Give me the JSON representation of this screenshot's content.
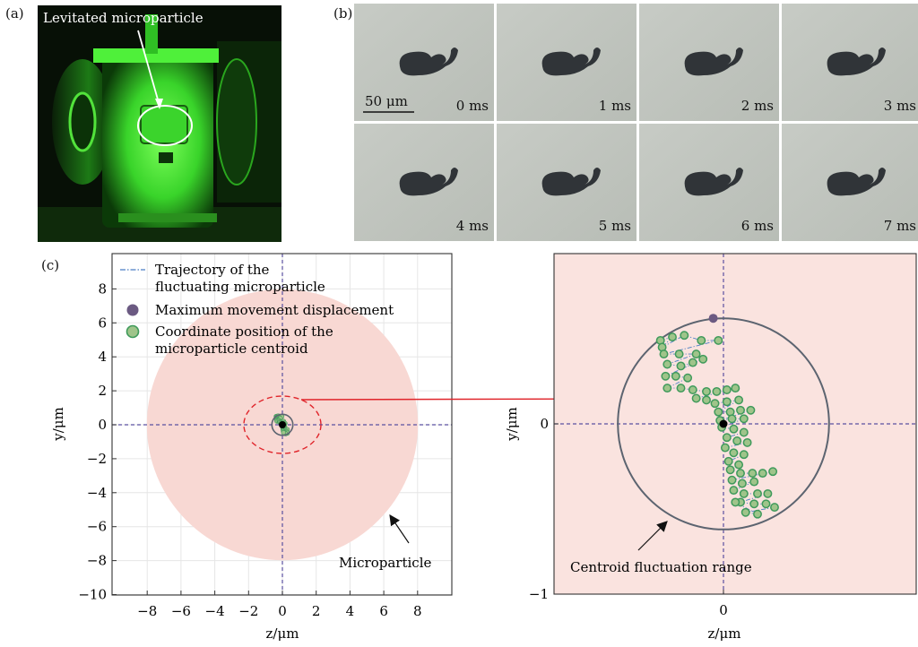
{
  "panel_a": {
    "label": "(a)",
    "annotation": "Levitated microparticle"
  },
  "panel_b": {
    "label": "(b)",
    "scale_bar": "50 μm",
    "frames": [
      "0 ms",
      "1 ms",
      "2 ms",
      "3 ms",
      "4 ms",
      "5 ms",
      "6 ms",
      "7 ms"
    ]
  },
  "panel_c": {
    "label": "(c)",
    "legend": {
      "trajectory_line1": "Trajectory of the",
      "trajectory_line2": "fluctuating microparticle",
      "max_disp": "Maximum movement displacement",
      "centroid_line1": "Coordinate position of the",
      "centroid_line2": "microparticle centroid"
    },
    "annotation_micro": "Microparticle",
    "annotation_range": "Centroid fluctuation range"
  },
  "colors": {
    "particle_fill": "#f8d8d3",
    "zoom_bg": "#fae3df",
    "trajectory": "#4a7ec4",
    "centroid_fill": "#9fc48a",
    "centroid_edge": "#3f9a5b",
    "max_point": "#6b5a82",
    "range_circle": "#5c6470",
    "dashed_axes": "#5a50a0",
    "red_marker": "#e0242a"
  },
  "chart_data": [
    {
      "type": "scatter",
      "title": "",
      "xlabel": "z/μm",
      "ylabel": "y/μm",
      "xlim": [
        -10,
        10
      ],
      "ylim": [
        -10,
        10
      ],
      "xticks": [
        "−8",
        "−6",
        "−4",
        "−2",
        "0",
        "2",
        "4",
        "6",
        "8"
      ],
      "yticks": [
        "−10",
        "−8",
        "−6",
        "−4",
        "−2",
        "0",
        "2",
        "4",
        "6",
        "8"
      ],
      "grid": true,
      "legend_position": "top-left",
      "microparticle_radius": 8,
      "fluctuation_range_radius": 0.62,
      "maximum_displacement_point": [
        -0.06,
        0.62
      ],
      "centroid_mean": [
        0,
        0
      ]
    },
    {
      "type": "scatter",
      "title": "",
      "xlabel": "z/μm",
      "ylabel": "y/μm",
      "xlim": [
        -1,
        1
      ],
      "ylim": [
        -1,
        1
      ],
      "xticks": [
        "0"
      ],
      "yticks": [
        "0",
        "−1"
      ],
      "grid": false,
      "fluctuation_range_radius": 0.62,
      "maximum_displacement_point": [
        -0.06,
        0.62
      ],
      "centroid_mean": [
        0,
        0
      ],
      "centroid_positions": [
        [
          -0.37,
          0.49
        ],
        [
          -0.3,
          0.51
        ],
        [
          -0.36,
          0.45
        ],
        [
          -0.23,
          0.52
        ],
        [
          -0.13,
          0.49
        ],
        [
          -0.03,
          0.49
        ],
        [
          -0.35,
          0.41
        ],
        [
          -0.26,
          0.41
        ],
        [
          -0.16,
          0.41
        ],
        [
          -0.33,
          0.35
        ],
        [
          -0.25,
          0.34
        ],
        [
          -0.18,
          0.36
        ],
        [
          -0.12,
          0.38
        ],
        [
          -0.34,
          0.28
        ],
        [
          -0.28,
          0.28
        ],
        [
          -0.21,
          0.27
        ],
        [
          -0.33,
          0.21
        ],
        [
          -0.25,
          0.21
        ],
        [
          -0.18,
          0.2
        ],
        [
          -0.1,
          0.19
        ],
        [
          -0.04,
          0.19
        ],
        [
          0.02,
          0.2
        ],
        [
          0.07,
          0.21
        ],
        [
          -0.16,
          0.15
        ],
        [
          -0.1,
          0.14
        ],
        [
          -0.05,
          0.12
        ],
        [
          0.02,
          0.13
        ],
        [
          0.09,
          0.14
        ],
        [
          -0.03,
          0.07
        ],
        [
          0.04,
          0.07
        ],
        [
          0.1,
          0.08
        ],
        [
          0.16,
          0.08
        ],
        [
          -0.02,
          0.02
        ],
        [
          0.05,
          0.03
        ],
        [
          0.12,
          0.03
        ],
        [
          -0.01,
          -0.02
        ],
        [
          0.06,
          -0.03
        ],
        [
          0.12,
          -0.05
        ],
        [
          0.02,
          -0.08
        ],
        [
          0.08,
          -0.1
        ],
        [
          0.14,
          -0.11
        ],
        [
          0.01,
          -0.14
        ],
        [
          0.06,
          -0.17
        ],
        [
          0.12,
          -0.18
        ],
        [
          0.03,
          -0.22
        ],
        [
          0.09,
          -0.24
        ],
        [
          0.04,
          -0.27
        ],
        [
          0.1,
          -0.29
        ],
        [
          0.17,
          -0.29
        ],
        [
          0.23,
          -0.29
        ],
        [
          0.29,
          -0.28
        ],
        [
          0.05,
          -0.33
        ],
        [
          0.11,
          -0.35
        ],
        [
          0.18,
          -0.34
        ],
        [
          0.06,
          -0.39
        ],
        [
          0.12,
          -0.41
        ],
        [
          0.2,
          -0.41
        ],
        [
          0.26,
          -0.41
        ],
        [
          0.1,
          -0.46
        ],
        [
          0.18,
          -0.47
        ],
        [
          0.25,
          -0.47
        ],
        [
          0.3,
          -0.49
        ],
        [
          0.13,
          -0.52
        ],
        [
          0.2,
          -0.53
        ],
        [
          0.07,
          -0.46
        ]
      ]
    }
  ]
}
